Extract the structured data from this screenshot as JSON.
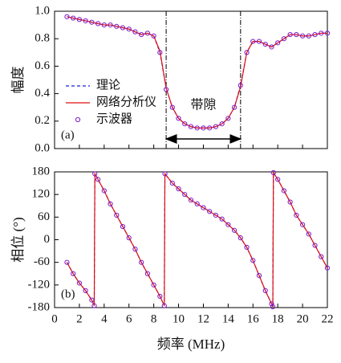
{
  "chart_data": [
    {
      "type": "line",
      "ylabel": "幅度",
      "panel": "(a)",
      "band_label": "带隙",
      "markers_x": [
        9,
        15
      ],
      "xlim": [
        0,
        22
      ],
      "xticks": [
        0,
        2,
        4,
        6,
        8,
        10,
        12,
        14,
        16,
        18,
        20,
        22
      ],
      "xtick_labels": false,
      "ylim": [
        0,
        1
      ],
      "yticks": [
        {
          "value": 0,
          "label": "0.0"
        },
        {
          "value": 0.2,
          "label": "0.2"
        },
        {
          "value": 0.4,
          "label": "0.4"
        },
        {
          "value": 0.6,
          "label": "0.6"
        },
        {
          "value": 0.8,
          "label": "0.8"
        },
        {
          "value": 1,
          "label": "1.0"
        }
      ],
      "legend": "lower left",
      "x": [
        1,
        1.5,
        2,
        2.5,
        3,
        3.5,
        4,
        4.5,
        5,
        5.5,
        6,
        6.5,
        7,
        7.5,
        8,
        8.5,
        9,
        9.5,
        10,
        10.5,
        11,
        11.5,
        12,
        12.5,
        13,
        13.5,
        14,
        14.5,
        15,
        15.5,
        16,
        16.5,
        17,
        17.5,
        18,
        18.5,
        19,
        19.5,
        20,
        20.5,
        21,
        21.5,
        22
      ],
      "series": [
        {
          "name": "理论",
          "color": "#1f1fe0",
          "style": "dashed",
          "values": [
            0.96,
            0.95,
            0.94,
            0.93,
            0.92,
            0.91,
            0.9,
            0.9,
            0.89,
            0.88,
            0.87,
            0.85,
            0.83,
            0.84,
            0.82,
            0.7,
            0.44,
            0.3,
            0.22,
            0.18,
            0.16,
            0.15,
            0.15,
            0.15,
            0.16,
            0.18,
            0.22,
            0.3,
            0.46,
            0.7,
            0.78,
            0.78,
            0.76,
            0.74,
            0.77,
            0.8,
            0.83,
            0.83,
            0.82,
            0.82,
            0.83,
            0.84,
            0.84
          ]
        },
        {
          "name": "网络分析仪",
          "color": "#e01010",
          "style": "solid",
          "values": [
            0.96,
            0.95,
            0.94,
            0.93,
            0.92,
            0.91,
            0.9,
            0.9,
            0.89,
            0.88,
            0.87,
            0.85,
            0.83,
            0.84,
            0.82,
            0.71,
            0.44,
            0.3,
            0.22,
            0.18,
            0.16,
            0.15,
            0.15,
            0.15,
            0.16,
            0.18,
            0.22,
            0.3,
            0.45,
            0.7,
            0.78,
            0.78,
            0.76,
            0.74,
            0.77,
            0.8,
            0.83,
            0.83,
            0.82,
            0.82,
            0.83,
            0.84,
            0.84
          ]
        },
        {
          "name": "示波器",
          "color": "#7a18c8",
          "style": "marker",
          "values": [
            0.96,
            0.95,
            0.94,
            0.93,
            0.92,
            0.91,
            0.9,
            0.9,
            0.89,
            0.88,
            0.87,
            0.85,
            0.83,
            0.84,
            0.82,
            0.7,
            0.43,
            0.3,
            0.22,
            0.18,
            0.16,
            0.15,
            0.15,
            0.15,
            0.16,
            0.18,
            0.22,
            0.3,
            0.46,
            0.7,
            0.78,
            0.78,
            0.76,
            0.74,
            0.77,
            0.8,
            0.83,
            0.83,
            0.82,
            0.82,
            0.83,
            0.84,
            0.84
          ]
        }
      ]
    },
    {
      "type": "line",
      "ylabel": "相位 (°)",
      "xlabel": "频率 (MHz)",
      "panel": "(b)",
      "xlim": [
        0,
        22
      ],
      "xticks": [
        0,
        2,
        4,
        6,
        8,
        10,
        12,
        14,
        16,
        18,
        20,
        22
      ],
      "xtick_labels": true,
      "ylim": [
        -180,
        180
      ],
      "yticks": [
        -180,
        -120,
        -60,
        0,
        60,
        120,
        180
      ],
      "x": [
        1,
        1.5,
        2,
        2.5,
        3,
        3.2,
        3.25,
        3.5,
        4,
        4.5,
        5,
        5.5,
        6,
        6.5,
        7,
        7.5,
        8,
        8.5,
        8.85,
        8.9,
        9.5,
        10,
        10.5,
        11,
        11.5,
        12,
        12.5,
        13,
        13.5,
        14,
        14.5,
        15,
        15.5,
        16,
        16.5,
        17,
        17.5,
        17.6,
        17.65,
        18,
        18.5,
        19,
        19.5,
        20,
        20.5,
        21,
        21.5,
        22
      ],
      "series": [
        {
          "name": "理论",
          "color": "#1f1fe0",
          "style": "dashed",
          "values": [
            -60,
            -90,
            -115,
            -135,
            -160,
            -175,
            175,
            160,
            130,
            95,
            65,
            35,
            5,
            -25,
            -60,
            -90,
            -120,
            -150,
            -175,
            175,
            150,
            135,
            120,
            105,
            95,
            85,
            75,
            65,
            55,
            40,
            25,
            5,
            -20,
            -55,
            -95,
            -135,
            -170,
            -178,
            178,
            160,
            130,
            100,
            65,
            40,
            15,
            -15,
            -45,
            -75
          ]
        },
        {
          "name": "网络分析仪",
          "color": "#e01010",
          "style": "solid",
          "values": [
            -60,
            -90,
            -115,
            -135,
            -160,
            -175,
            175,
            160,
            130,
            95,
            65,
            35,
            5,
            -25,
            -60,
            -90,
            -120,
            -150,
            -175,
            175,
            150,
            135,
            120,
            105,
            95,
            85,
            75,
            65,
            55,
            40,
            25,
            5,
            -20,
            -55,
            -95,
            -135,
            -170,
            -178,
            178,
            160,
            130,
            100,
            65,
            40,
            15,
            -15,
            -45,
            -75
          ]
        },
        {
          "name": "示波器",
          "color": "#7a18c8",
          "style": "marker",
          "values": [
            -60,
            -90,
            -115,
            -135,
            -160,
            -175,
            175,
            160,
            130,
            95,
            65,
            35,
            5,
            -25,
            -60,
            -90,
            -120,
            -150,
            -175,
            175,
            150,
            135,
            120,
            105,
            95,
            85,
            75,
            65,
            55,
            40,
            25,
            5,
            -20,
            -55,
            -95,
            -135,
            -170,
            -178,
            178,
            160,
            130,
            100,
            65,
            40,
            15,
            -15,
            -45,
            -75
          ]
        }
      ]
    }
  ]
}
